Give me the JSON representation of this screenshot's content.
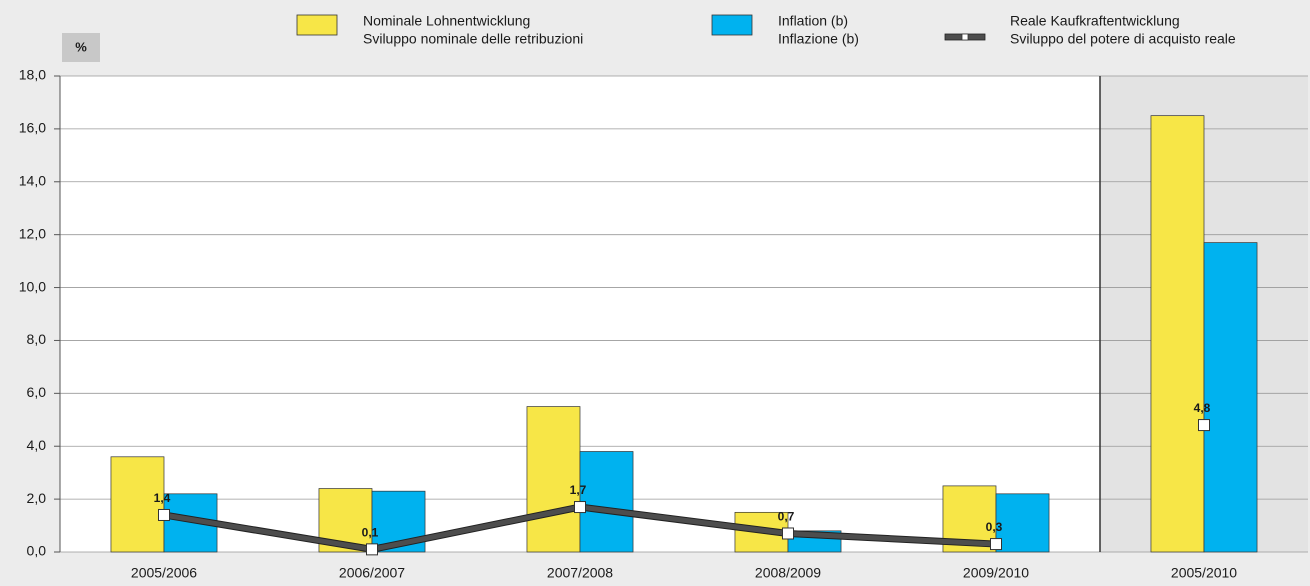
{
  "chart_data": [
    {
      "type": "bar",
      "y_label": "%",
      "categories": [
        "2005/2006",
        "2006/2007",
        "2007/2008",
        "2008/2009",
        "2009/2010"
      ],
      "series": [
        {
          "name": [
            "Nominale Lohnentwicklung",
            "Sviluppo nominale delle retribuzioni"
          ],
          "color": "#f7e647",
          "values": [
            3.6,
            2.4,
            5.5,
            1.5,
            2.5
          ]
        },
        {
          "name": [
            "Inflation (b)",
            "Inflazione (b)"
          ],
          "color": "#00b2ef",
          "values": [
            2.2,
            2.3,
            3.8,
            0.8,
            2.2
          ]
        },
        {
          "name": [
            "Reale Kaufkraftentwicklung",
            "Sviluppo del potere di acquisto reale"
          ],
          "type": "line",
          "color": "#4d4d4d",
          "values": [
            1.4,
            0.1,
            1.7,
            0.7,
            0.3
          ],
          "value_labels": [
            "1,4",
            "0,1",
            "1,7",
            "0,7",
            "0,3"
          ]
        }
      ],
      "ylim": [
        0,
        18
      ],
      "yticks": [
        {
          "value": 0,
          "label": "0,0"
        },
        {
          "value": 2,
          "label": "2,0"
        },
        {
          "value": 4,
          "label": "4,0"
        },
        {
          "value": 6,
          "label": "6,0"
        },
        {
          "value": 8,
          "label": "8,0"
        },
        {
          "value": 10,
          "label": "10,0"
        },
        {
          "value": 12,
          "label": "12,0"
        },
        {
          "value": 14,
          "label": "14,0"
        },
        {
          "value": 16,
          "label": "16,0"
        },
        {
          "value": 18,
          "label": "18,0"
        }
      ],
      "grid": true
    },
    {
      "type": "bar",
      "categories": [
        "2005/2010"
      ],
      "series": [
        {
          "color": "#f7e647",
          "values": [
            16.5
          ]
        },
        {
          "color": "#00b2ef",
          "values": [
            11.7
          ]
        },
        {
          "type": "line",
          "color": "#4d4d4d",
          "values": [
            4.8
          ],
          "value_labels": [
            "4,8"
          ]
        }
      ],
      "background": "#e3e3e3"
    }
  ]
}
